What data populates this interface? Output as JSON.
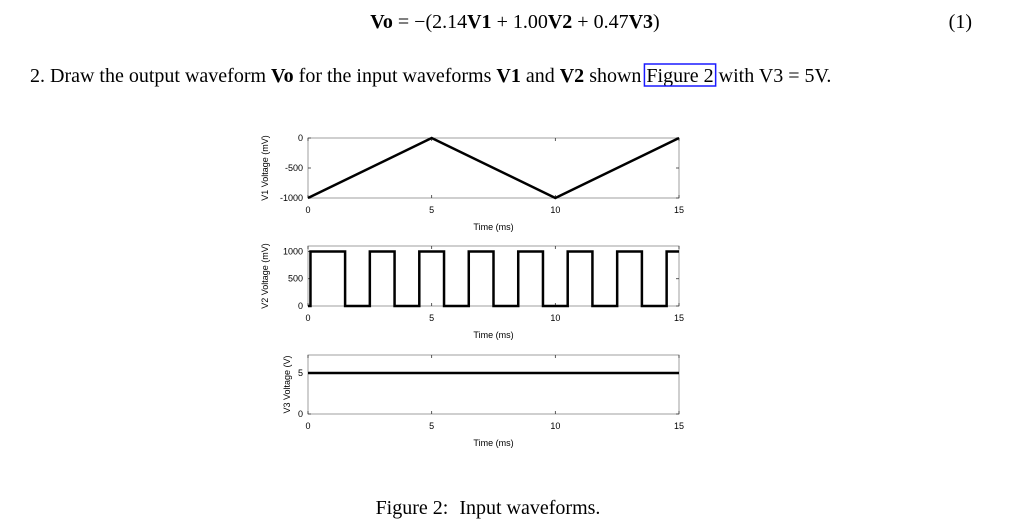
{
  "equation": {
    "lhs": "Vo",
    "eq": "= −(2.14",
    "v1": "V1",
    "p2": "+ 1.00",
    "v2": "V2",
    "p3": "+ 0.47",
    "v3": "V3",
    "close": ")",
    "number": "(1)"
  },
  "problem": {
    "number": "2.",
    "t1": "Draw the output waveform",
    "vo": "Vo",
    "t2": "for the input waveforms",
    "v1": "V1",
    "t3": "and",
    "v2": "V2",
    "t4": "shown",
    "link": "Figure 2",
    "t5": "with V3 = 5V."
  },
  "chart_data": [
    {
      "type": "line",
      "x_label": "Time (ms)",
      "y_label": "V1 Voltage (mV)",
      "color": "#000000",
      "x": [
        0,
        5,
        10,
        15
      ],
      "values": [
        -1000,
        0,
        -1000,
        0
      ],
      "xlim": [
        0,
        15
      ],
      "ylim": [
        -1000,
        0
      ],
      "xticks": [
        0,
        5,
        10,
        15
      ],
      "yticks": [
        -1000,
        -500,
        0
      ]
    },
    {
      "type": "line",
      "x_label": "Time (ms)",
      "y_label": "V2 Voltage (mV)",
      "color": "#000000",
      "x": [
        0,
        0.1,
        0.1,
        1.5,
        1.5,
        2.5,
        2.5,
        3.5,
        3.5,
        4.5,
        4.5,
        5.5,
        5.5,
        6.5,
        6.5,
        7.5,
        7.5,
        8.5,
        8.5,
        9.5,
        9.5,
        10.5,
        10.5,
        11.5,
        11.5,
        12.5,
        12.5,
        13.5,
        13.5,
        14.5,
        14.5,
        15
      ],
      "values": [
        0,
        0,
        1000,
        1000,
        0,
        0,
        1000,
        1000,
        0,
        0,
        1000,
        1000,
        0,
        0,
        1000,
        1000,
        0,
        0,
        1000,
        1000,
        0,
        0,
        1000,
        1000,
        0,
        0,
        1000,
        1000,
        0,
        0,
        1000,
        1000
      ],
      "xlim": [
        0,
        15
      ],
      "ylim": [
        0,
        1100
      ],
      "xticks": [
        0,
        5,
        10,
        15
      ],
      "yticks": [
        0,
        500,
        1000
      ]
    },
    {
      "type": "line",
      "x_label": "Time (ms)",
      "y_label": "V3 Voltage (V)",
      "color": "#000000",
      "x": [
        0,
        15
      ],
      "values": [
        5,
        5
      ],
      "xlim": [
        0,
        15
      ],
      "ylim": [
        0,
        7.2
      ],
      "xticks": [
        0,
        5,
        10,
        15
      ],
      "yticks": [
        0,
        5
      ]
    }
  ],
  "caption": {
    "label": "Figure 2:",
    "text": "Input waveforms."
  }
}
